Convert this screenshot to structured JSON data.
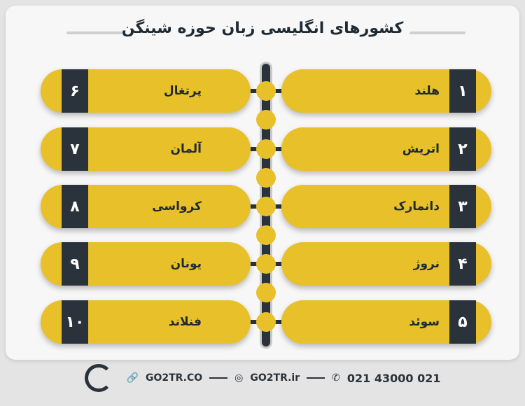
{
  "title": "کشورهای انگلیسی زبان حوزه شینگن",
  "colors": {
    "accent": "#e8c02a",
    "dark": "#2a333b"
  },
  "right_items": [
    {
      "num": "۱",
      "name": "هلند"
    },
    {
      "num": "۲",
      "name": "اتریش"
    },
    {
      "num": "۳",
      "name": "دانمارک"
    },
    {
      "num": "۴",
      "name": "نروژ"
    },
    {
      "num": "۵",
      "name": "سوئد"
    }
  ],
  "left_items": [
    {
      "num": "۶",
      "name": "پرتغال"
    },
    {
      "num": "۷",
      "name": "آلمان"
    },
    {
      "num": "۸",
      "name": "کرواسی"
    },
    {
      "num": "۹",
      "name": "یونان"
    },
    {
      "num": "۱۰",
      "name": "فنلاند"
    }
  ],
  "footer": {
    "website": "GO2TR.CO",
    "instagram": "GO2TR.ir",
    "phone": "021 43000 021",
    "icons": [
      "link-icon",
      "instagram-icon",
      "phone-icon"
    ]
  }
}
